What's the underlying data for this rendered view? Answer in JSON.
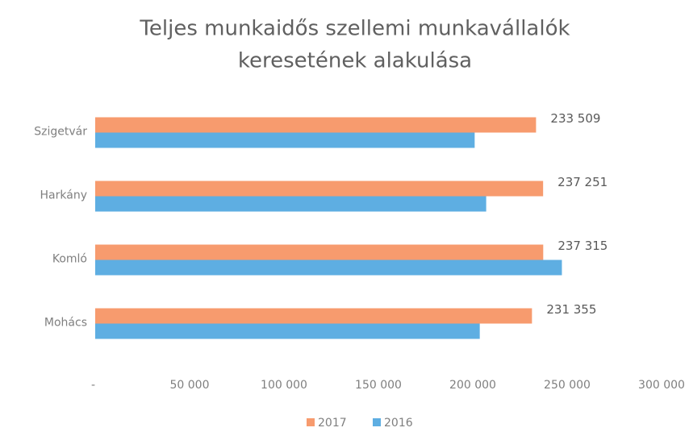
{
  "chart_data": {
    "type": "hbar",
    "title": [
      "Teljes munkaidős szellemi munkavállalók",
      "keresetének alakulása"
    ],
    "categories": [
      "Szigetvár",
      "Harkány",
      "Komló",
      "Mohács"
    ],
    "series": [
      {
        "name": "2017",
        "color": "#f79b6e",
        "values": [
          233509,
          237251,
          237315,
          231355
        ],
        "value_labels": [
          "233 509",
          "237 251",
          "237 315",
          "231 355"
        ]
      },
      {
        "name": "2016",
        "color": "#5eaee2",
        "values": [
          201000,
          207100,
          247200,
          203700
        ]
      }
    ],
    "xlim": [
      0,
      300000
    ],
    "xticks": [
      {
        "value": 0,
        "label": "-"
      },
      {
        "value": 50000,
        "label": "50 000"
      },
      {
        "value": 100000,
        "label": "100 000"
      },
      {
        "value": 150000,
        "label": "150 000"
      },
      {
        "value": 200000,
        "label": "200 000"
      },
      {
        "value": 250000,
        "label": "250 000"
      },
      {
        "value": 300000,
        "label": "300 000"
      }
    ],
    "legend": "bottom"
  }
}
